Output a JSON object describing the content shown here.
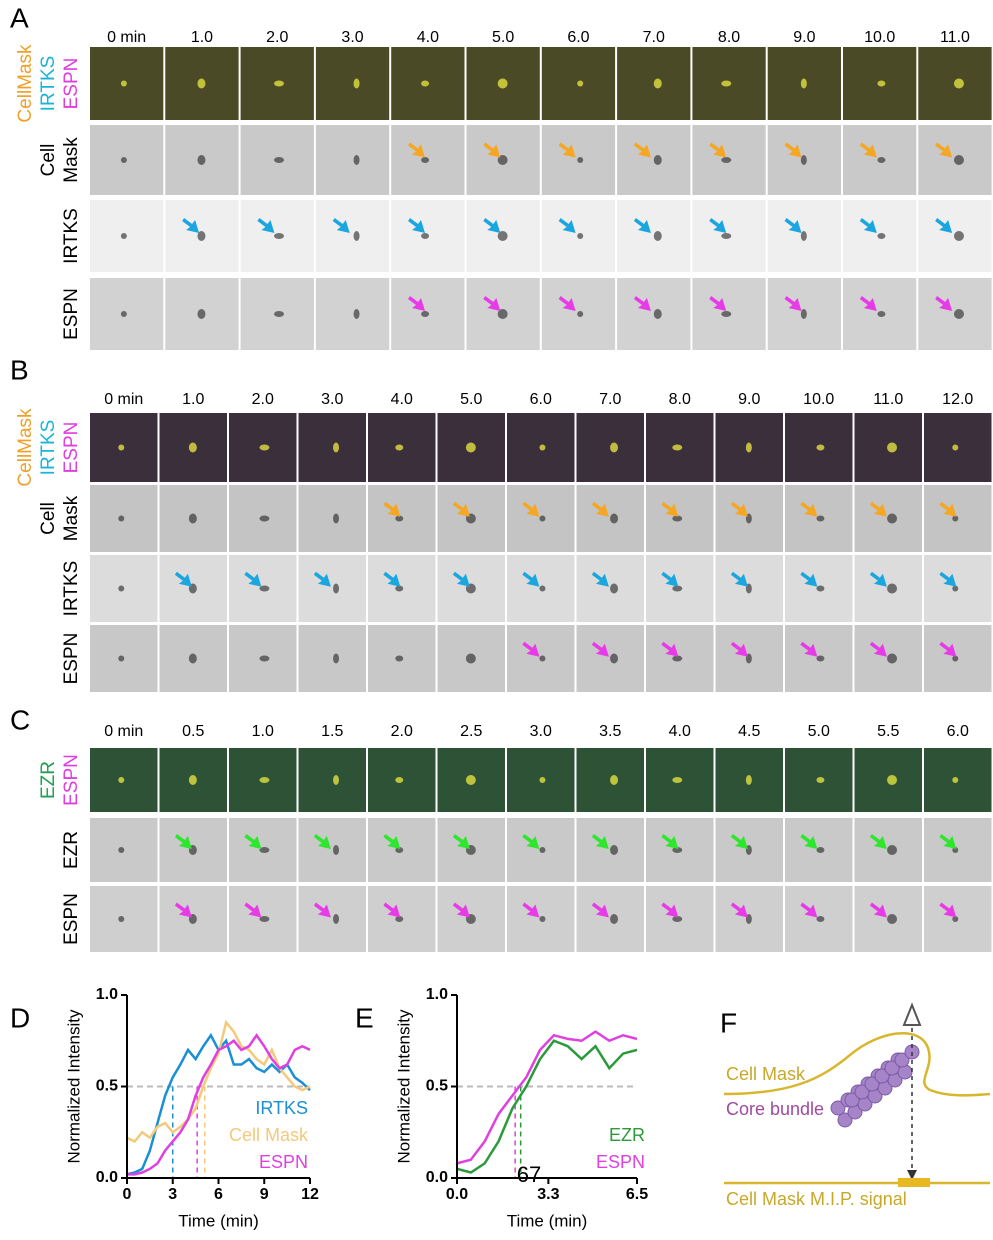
{
  "panel_a": {
    "letter": "A",
    "times": [
      "0 min",
      "1.0",
      "2.0",
      "3.0",
      "4.0",
      "5.0",
      "6.0",
      "7.0",
      "8.0",
      "9.0",
      "10.0",
      "11.0"
    ],
    "row_labels": [
      [
        {
          "text": "CellMask",
          "color": "#f0a02a"
        },
        {
          "text": "IRTKS",
          "color": "#19b4d8"
        },
        {
          "text": "ESPN",
          "color": "#e03ce0"
        }
      ],
      [
        {
          "text": "Cell",
          "color": "#000000"
        },
        {
          "text": "Mask",
          "color": "#000000"
        }
      ],
      [
        {
          "text": "IRTKS",
          "color": "#000000"
        }
      ],
      [
        {
          "text": "ESPN",
          "color": "#000000"
        }
      ]
    ]
  },
  "panel_b": {
    "letter": "B",
    "times": [
      "0 min",
      "1.0",
      "2.0",
      "3.0",
      "4.0",
      "5.0",
      "6.0",
      "7.0",
      "8.0",
      "9.0",
      "10.0",
      "11.0",
      "12.0"
    ],
    "row_labels": [
      [
        {
          "text": "CellMask",
          "color": "#f0a02a"
        },
        {
          "text": "IRTKS",
          "color": "#19b4d8"
        },
        {
          "text": "ESPN",
          "color": "#e03ce0"
        }
      ],
      [
        {
          "text": "Cell",
          "color": "#000000"
        },
        {
          "text": "Mask",
          "color": "#000000"
        }
      ],
      [
        {
          "text": "IRTKS",
          "color": "#000000"
        }
      ],
      [
        {
          "text": "ESPN",
          "color": "#000000"
        }
      ]
    ]
  },
  "panel_c": {
    "letter": "C",
    "times": [
      "0 min",
      "0.5",
      "1.0",
      "1.5",
      "2.0",
      "2.5",
      "3.0",
      "3.5",
      "4.0",
      "4.5",
      "5.0",
      "5.5",
      "6.0"
    ],
    "row_labels": [
      [
        {
          "text": "EZR",
          "color": "#20a050"
        },
        {
          "text": "ESPN",
          "color": "#e03ce0"
        }
      ],
      [
        {
          "text": "EZR",
          "color": "#000000"
        }
      ],
      [
        {
          "text": "ESPN",
          "color": "#000000"
        }
      ]
    ]
  },
  "chart_data": [
    {
      "type": "line",
      "letter": "D",
      "ylabel": "Normalized Intensity",
      "xlabel": "Time (min)",
      "x": [
        0,
        0.5,
        1,
        1.5,
        2,
        2.5,
        3,
        3.5,
        4,
        4.5,
        5,
        5.5,
        6,
        6.5,
        7,
        7.5,
        8,
        8.5,
        9,
        9.5,
        10,
        10.5,
        11,
        11.5,
        12
      ],
      "series": [
        {
          "name": "IRTKS",
          "color": "#1a8fd6",
          "values": [
            0.02,
            0.03,
            0.05,
            0.15,
            0.3,
            0.45,
            0.55,
            0.62,
            0.7,
            0.65,
            0.72,
            0.78,
            0.7,
            0.75,
            0.62,
            0.62,
            0.65,
            0.6,
            0.58,
            0.62,
            0.58,
            0.62,
            0.55,
            0.52,
            0.48
          ]
        },
        {
          "name": "Cell Mask",
          "color": "#f5c97a",
          "values": [
            0.22,
            0.2,
            0.25,
            0.22,
            0.28,
            0.3,
            0.25,
            0.28,
            0.32,
            0.38,
            0.5,
            0.6,
            0.68,
            0.85,
            0.8,
            0.72,
            0.7,
            0.65,
            0.62,
            0.7,
            0.6,
            0.55,
            0.5,
            0.48,
            0.5
          ]
        },
        {
          "name": "ESPN",
          "color": "#e040e0",
          "values": [
            0.02,
            0.02,
            0.03,
            0.05,
            0.08,
            0.15,
            0.2,
            0.25,
            0.32,
            0.45,
            0.55,
            0.62,
            0.7,
            0.72,
            0.75,
            0.7,
            0.72,
            0.78,
            0.72,
            0.65,
            0.6,
            0.62,
            0.7,
            0.72,
            0.7
          ]
        }
      ],
      "xlim": [
        0,
        12
      ],
      "xticks": [
        0,
        3,
        6,
        9,
        12
      ],
      "ylim": [
        0,
        1
      ],
      "yticks": [
        {
          "value": 0,
          "label": "0.0"
        },
        {
          "value": 0.5,
          "label": "0.5"
        },
        {
          "value": 1,
          "label": "1.0"
        }
      ],
      "hline": 0.5,
      "vlines": [
        {
          "value": 3,
          "color": "#1a8fd6"
        },
        {
          "value": 4.6,
          "color": "#e040e0"
        },
        {
          "value": 5.1,
          "color": "#f5c97a"
        }
      ]
    },
    {
      "type": "line",
      "letter": "E",
      "ylabel": "Normalized Intensity",
      "xlabel": "Time (min)",
      "x": [
        0,
        0.5,
        1,
        1.5,
        2,
        2.5,
        3,
        3.5,
        4,
        4.5,
        5,
        5.5,
        6,
        6.5
      ],
      "series": [
        {
          "name": "EZR",
          "color": "#2a9a3a",
          "values": [
            0.05,
            0.03,
            0.08,
            0.2,
            0.38,
            0.5,
            0.65,
            0.75,
            0.72,
            0.65,
            0.72,
            0.6,
            0.68,
            0.7
          ]
        },
        {
          "name": "ESPN",
          "color": "#e040e0",
          "values": [
            0.08,
            0.1,
            0.2,
            0.35,
            0.45,
            0.55,
            0.7,
            0.78,
            0.76,
            0.75,
            0.8,
            0.75,
            0.78,
            0.76
          ]
        }
      ],
      "xlim": [
        0,
        6.5
      ],
      "xticks": [
        {
          "value": 0,
          "label": "0.0"
        },
        3.3,
        6.5
      ],
      "ylim": [
        0,
        1
      ],
      "yticks": [
        {
          "value": 0,
          "label": "0.0"
        },
        {
          "value": 0.5,
          "label": "0.5"
        },
        {
          "value": 1,
          "label": "1.0"
        }
      ],
      "hline": 0.5,
      "vlines": [
        {
          "value": 2.1,
          "color": "#e040e0"
        },
        {
          "value": 2.3,
          "color": "#2a9a3a"
        }
      ],
      "annotation": "67"
    }
  ],
  "panel_f": {
    "letter": "F",
    "cell_mask": "Cell Mask",
    "core_bundle": "Core bundle",
    "mip": "Cell Mask M.I.P. signal"
  }
}
